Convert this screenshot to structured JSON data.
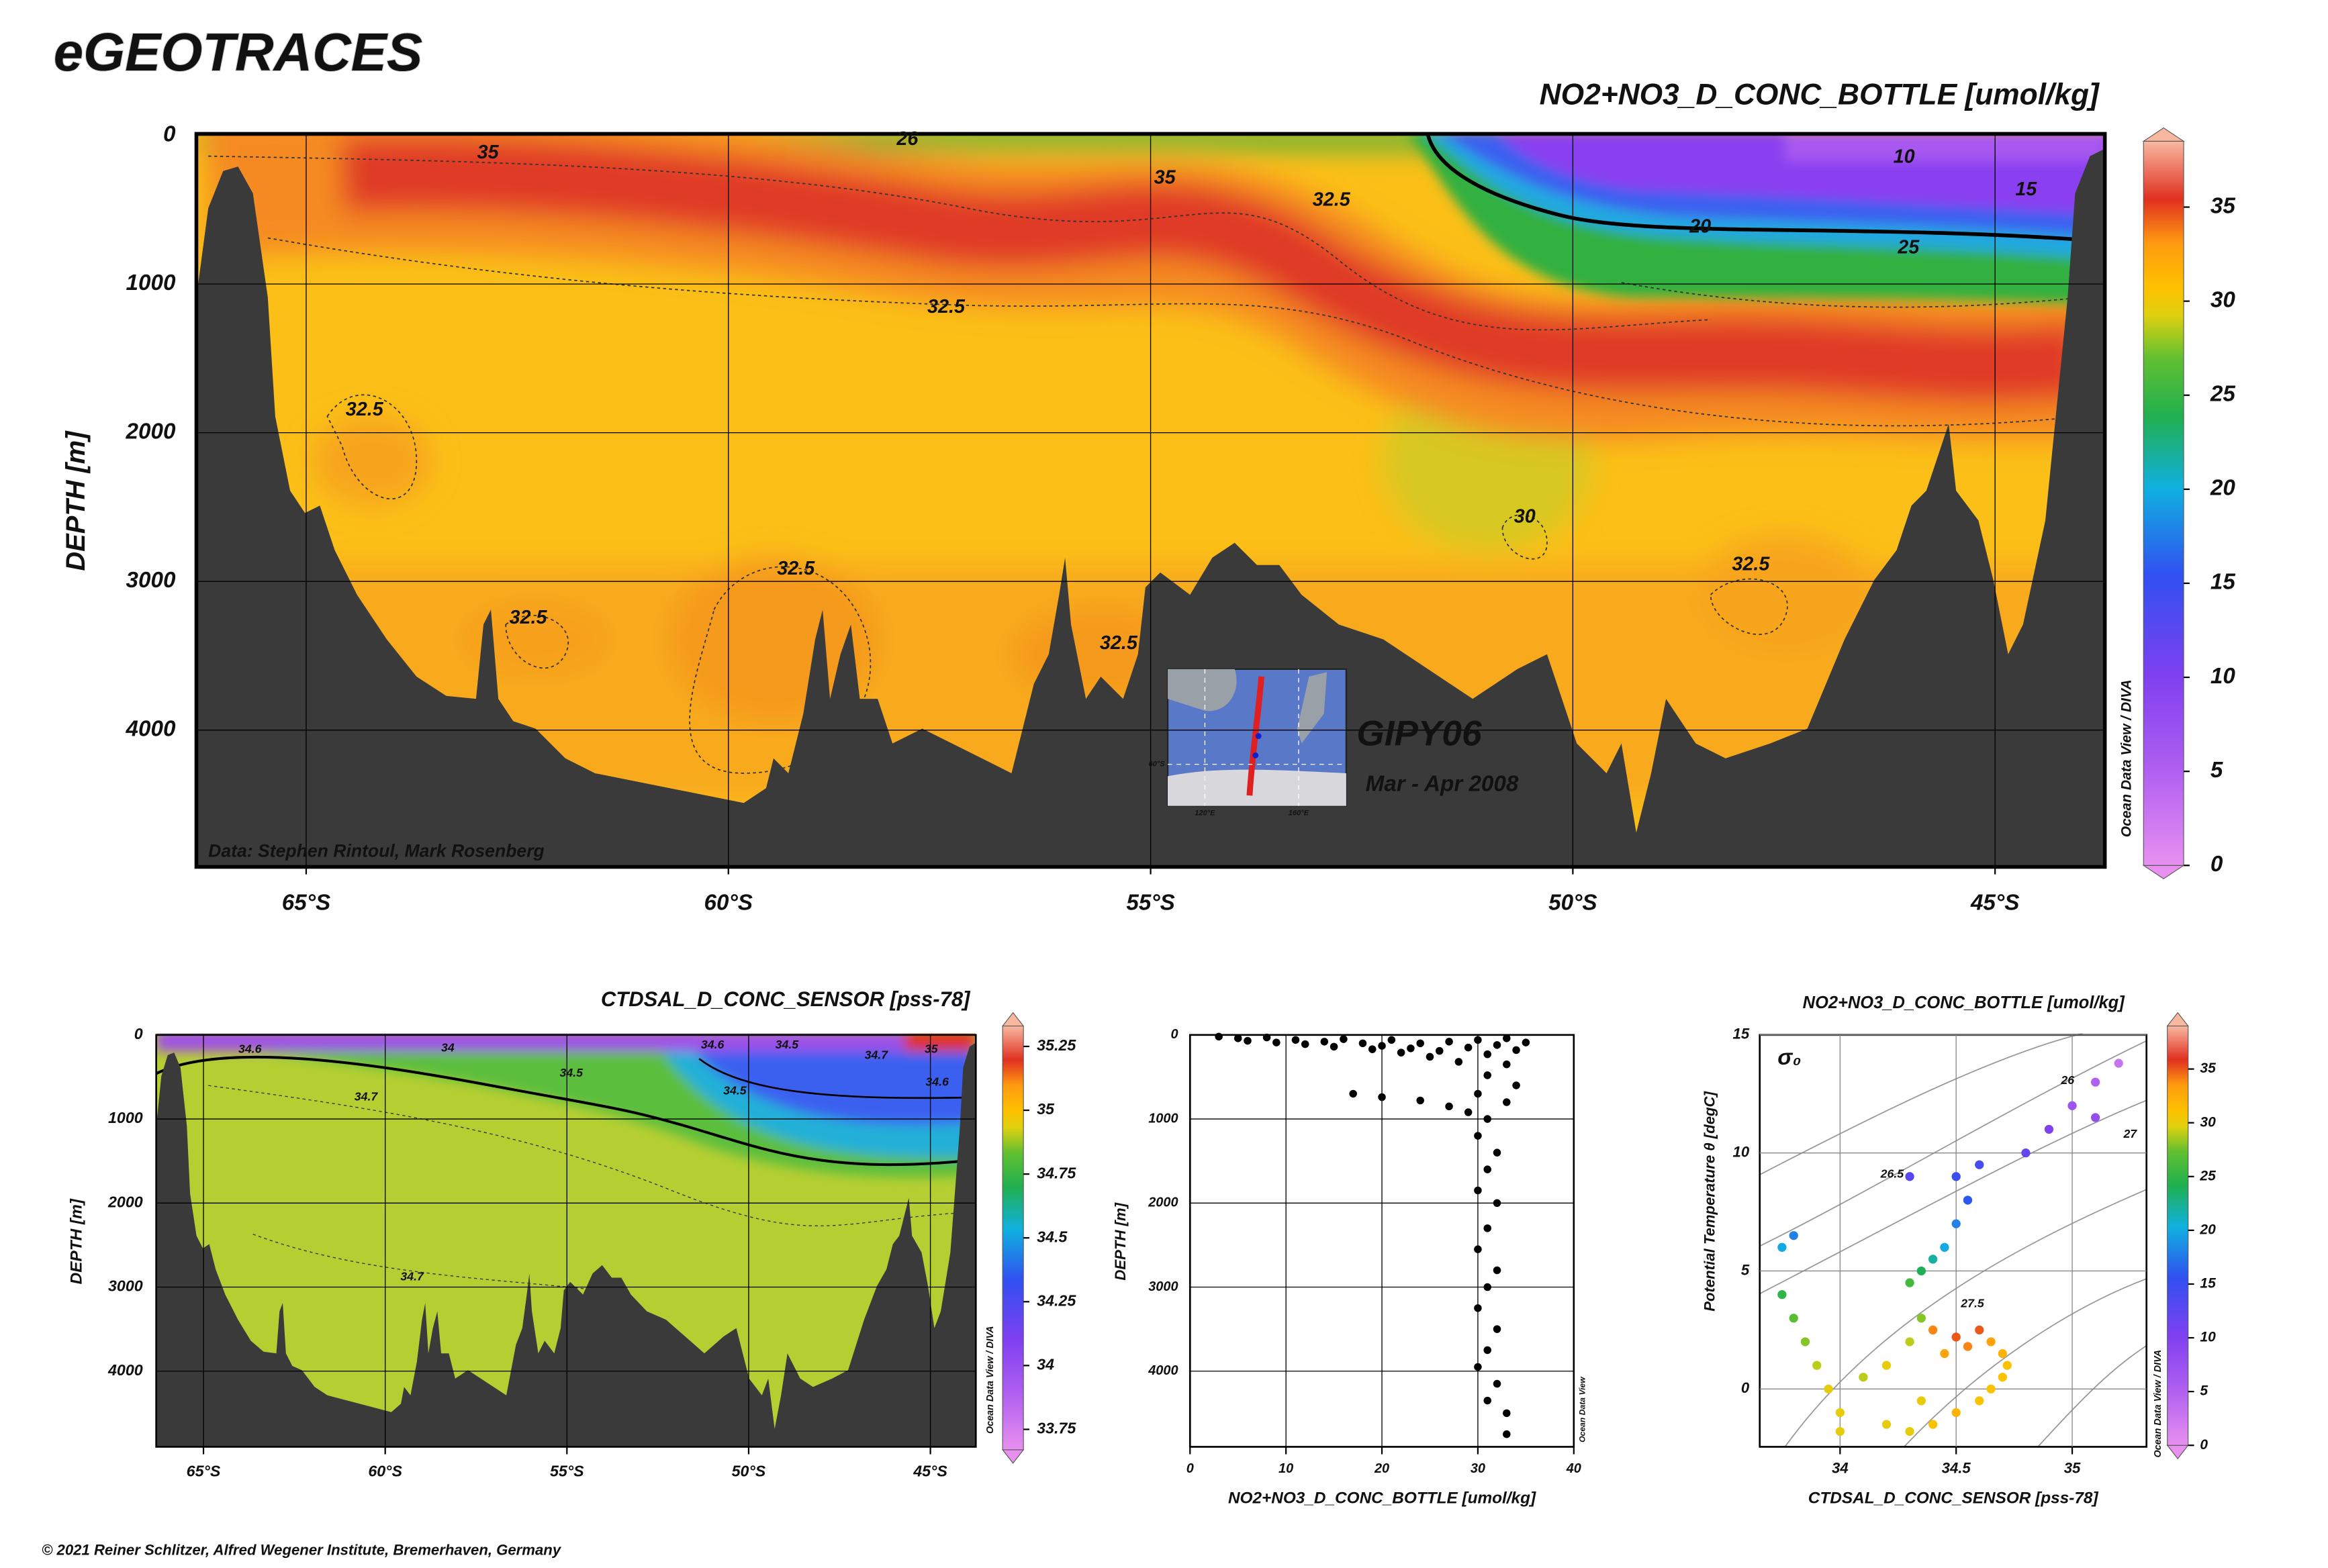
{
  "header": {
    "title": "eGEOTRACES"
  },
  "footer": "© 2021 Reiner Schlitzer, Alfred Wegener Institute, Bremerhaven, Germany",
  "chart_data": [
    {
      "type": "section",
      "title": "NO2+NO3_D_CONC_BOTTLE [umol/kg]",
      "ylabel": "DEPTH [m]",
      "xlim": [
        -66.3,
        -43.7
      ],
      "ylim": [
        0,
        4920
      ],
      "yreverse": true,
      "xticks": [
        {
          "value": -65,
          "label": "65°S"
        },
        {
          "value": -60,
          "label": "60°S"
        },
        {
          "value": -55,
          "label": "55°S"
        },
        {
          "value": -50,
          "label": "50°S"
        },
        {
          "value": -45,
          "label": "45°S"
        }
      ],
      "yticks": [
        0,
        1000,
        2000,
        3000,
        4000
      ],
      "grid": true,
      "colorbar": {
        "lim": [
          0,
          38.5
        ],
        "ticks": [
          0,
          5,
          10,
          15,
          20,
          25,
          30,
          35
        ]
      },
      "contour_labels": [
        "35",
        "26",
        "35",
        "32.5",
        "10",
        "15",
        "20",
        "25",
        "32.5",
        "32.5",
        "30",
        "32.5",
        "32.5",
        "32.5",
        "32.5"
      ],
      "credit": "Data: Stephen Rintoul, Mark Rosenberg",
      "watermark": "Ocean Data View / DIVA",
      "inset": {
        "cruise": "GIPY06",
        "dates": "Mar - Apr 2008",
        "labels": [
          "60°S",
          "120°E",
          "160°E"
        ]
      }
    },
    {
      "type": "section",
      "title": "CTDSAL_D_CONC_SENSOR [pss-78]",
      "ylabel": "DEPTH [m]",
      "xlim": [
        -66.3,
        -43.75
      ],
      "ylim": [
        0,
        4900
      ],
      "yreverse": true,
      "xticks": [
        {
          "value": -65,
          "label": "65°S"
        },
        {
          "value": -60,
          "label": "60°S"
        },
        {
          "value": -55,
          "label": "55°S"
        },
        {
          "value": -50,
          "label": "50°S"
        },
        {
          "value": -45,
          "label": "45°S"
        }
      ],
      "yticks": [
        0,
        1000,
        2000,
        3000,
        4000
      ],
      "grid": true,
      "colorbar": {
        "lim": [
          33.67,
          35.33
        ],
        "ticks": [
          35.25,
          35,
          34.75,
          34.5,
          34.25,
          34,
          33.75
        ]
      },
      "contour_labels": [
        "34.6",
        "34",
        "34.5",
        "34.7",
        "34.6",
        "34.5",
        "34.7",
        "35",
        "34.5",
        "34.6",
        "34.7"
      ],
      "watermark": "Ocean Data View / DIVA"
    },
    {
      "type": "scatter",
      "xlabel": "NO2+NO3_D_CONC_BOTTLE [umol/kg]",
      "ylabel": "DEPTH [m]",
      "xlim": [
        0,
        40
      ],
      "ylim": [
        0,
        4900
      ],
      "yreverse": true,
      "xticks": [
        0,
        10,
        20,
        30,
        40
      ],
      "yticks": [
        0,
        1000,
        2000,
        3000,
        4000
      ],
      "grid": true,
      "color": "#000000",
      "watermark": "Ocean Data View",
      "x": [
        3,
        5,
        6,
        8,
        9,
        11,
        12,
        14,
        15,
        16,
        18,
        19,
        20,
        21,
        22,
        23,
        24,
        25,
        26,
        27,
        28,
        29,
        30,
        31,
        32,
        33,
        34,
        35,
        33,
        31,
        34,
        30,
        33,
        17,
        20,
        24,
        27,
        29,
        31,
        30,
        32,
        31,
        30,
        32,
        31,
        30,
        32,
        31,
        30,
        32,
        31,
        30,
        32,
        31,
        33,
        33
      ],
      "y": [
        20,
        40,
        70,
        30,
        90,
        60,
        110,
        80,
        140,
        50,
        100,
        170,
        130,
        60,
        210,
        160,
        100,
        260,
        190,
        80,
        320,
        150,
        60,
        230,
        120,
        40,
        180,
        90,
        350,
        480,
        600,
        700,
        800,
        700,
        740,
        780,
        850,
        920,
        1000,
        1200,
        1400,
        1600,
        1850,
        2000,
        2300,
        2550,
        2800,
        3000,
        3250,
        3500,
        3750,
        3950,
        4150,
        4350,
        4500,
        4750
      ]
    },
    {
      "type": "scatter",
      "title": "NO2+NO3_D_CONC_BOTTLE [umol/kg]",
      "xlabel": "CTDSAL_D_CONC_SENSOR [pss-78]",
      "ylabel": "Potential Temperature θ [degC]",
      "xlim": [
        33.654,
        35.32
      ],
      "ylim": [
        -2.45,
        15
      ],
      "xticks": [
        34,
        34.5,
        35
      ],
      "yticks": [
        0,
        5,
        10,
        15
      ],
      "grid": true,
      "colorbar": {
        "lim": [
          0,
          39
        ],
        "ticks": [
          0,
          5,
          10,
          15,
          20,
          25,
          30,
          35
        ]
      },
      "isopycnal_labels": [
        "26",
        "26.5",
        "27",
        "27.5"
      ],
      "sigma_label": "σ₀",
      "watermark": "Ocean Data View / DIVA",
      "x": [
        35.2,
        35.1,
        35.0,
        35.1,
        34.9,
        34.8,
        34.6,
        34.5,
        34.55,
        34.5,
        34.45,
        34.4,
        34.35,
        33.75,
        33.8,
        34.3,
        33.75,
        33.8,
        33.85,
        33.9,
        33.95,
        34.0,
        34.3,
        34.35,
        34.3,
        34.4,
        34.5,
        34.6,
        34.55,
        34.65,
        34.45,
        34.7,
        34.72,
        34.7,
        34.65,
        34.6,
        34.5,
        34.4,
        34.3,
        34.2,
        34.0,
        34.1,
        34.2,
        34.35
      ],
      "y": [
        13.8,
        13,
        12,
        11.5,
        11,
        10,
        9.5,
        9,
        8,
        7,
        6,
        5.5,
        5,
        6,
        6.5,
        9,
        4,
        3,
        2,
        1,
        0,
        -1,
        4.5,
        3,
        2,
        2.5,
        2.2,
        2.5,
        1.8,
        2,
        1.5,
        1.5,
        1,
        0.5,
        0,
        -0.5,
        -1,
        -1.5,
        -1.8,
        -1.5,
        -1.8,
        0.5,
        1,
        -0.5
      ],
      "c": [
        3,
        5,
        7,
        8,
        10,
        12,
        14,
        15,
        16,
        18,
        20,
        22,
        24,
        20,
        18,
        13,
        25,
        27,
        28,
        29,
        30,
        30,
        26,
        28,
        29,
        34,
        35,
        35,
        34,
        33,
        33,
        32,
        31,
        31,
        31,
        31,
        32,
        31,
        30,
        30,
        30,
        29,
        30,
        30
      ]
    }
  ]
}
